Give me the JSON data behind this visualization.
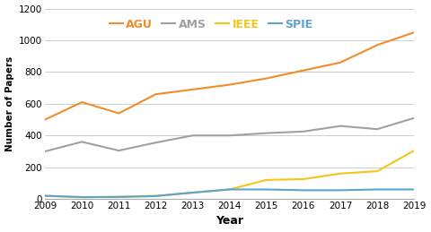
{
  "years": [
    2009,
    2010,
    2011,
    2012,
    2013,
    2014,
    2015,
    2016,
    2017,
    2018,
    2019
  ],
  "AGU": [
    500,
    610,
    540,
    660,
    690,
    720,
    760,
    810,
    860,
    970,
    1050
  ],
  "AMS": [
    300,
    360,
    305,
    355,
    400,
    400,
    415,
    425,
    460,
    440,
    510
  ],
  "IEEE": [
    20,
    10,
    15,
    20,
    40,
    60,
    120,
    125,
    160,
    175,
    305
  ],
  "SPIE": [
    20,
    12,
    12,
    18,
    40,
    60,
    60,
    55,
    55,
    60,
    60
  ],
  "colors": {
    "AGU": "#F28C28",
    "AMS": "#A0A0A0",
    "IEEE": "#F5C518",
    "SPIE": "#5BA4CF"
  },
  "xlabel": "Year",
  "ylabel": "Number of Papers",
  "ylim": [
    0,
    1200
  ],
  "yticks": [
    0,
    200,
    400,
    600,
    800,
    1000,
    1200
  ],
  "background_color": "#FFFFFF",
  "legend_labels": [
    "AGU",
    "AMS",
    "IEEE",
    "SPIE"
  ],
  "legend_colors": [
    "#F28C28",
    "#A0A0A0",
    "#F5C518",
    "#5BA4CF"
  ]
}
